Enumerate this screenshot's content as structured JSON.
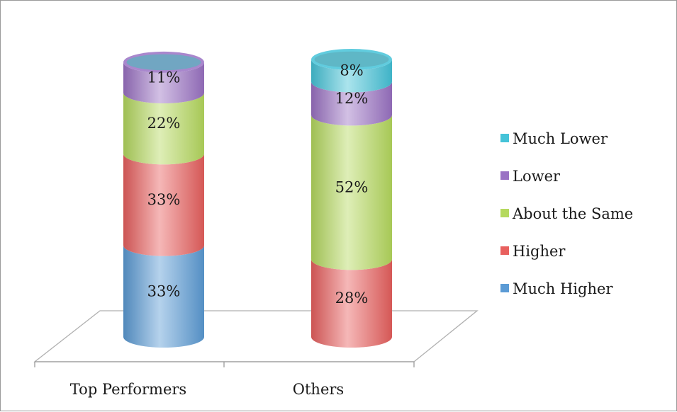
{
  "chart_data": {
    "type": "bar",
    "subtype": "stacked-100-percent-cylinder-3d",
    "categories": [
      "Top Performers",
      "Others"
    ],
    "series": [
      {
        "name": "Much Higher",
        "color": "#5b9bd5",
        "values": [
          33,
          0
        ]
      },
      {
        "name": "Higher",
        "color": "#e8605e",
        "values": [
          33,
          28
        ]
      },
      {
        "name": "About the Same",
        "color": "#b5d95e",
        "values": [
          22,
          52
        ]
      },
      {
        "name": "Lower",
        "color": "#9a72c4",
        "values": [
          11,
          12
        ]
      },
      {
        "name": "Much Lower",
        "color": "#45c3d8",
        "values": [
          0,
          8
        ]
      }
    ],
    "data_labels": [
      [
        "33%",
        "33%",
        "22%",
        "11%",
        ""
      ],
      [
        "",
        "28%",
        "52%",
        "12%",
        "8%"
      ]
    ],
    "ylim": [
      0,
      100
    ],
    "legend_position": "right",
    "legend_order": [
      "Much Lower",
      "Lower",
      "About the Same",
      "Higher",
      "Much Higher"
    ],
    "grid": false
  }
}
